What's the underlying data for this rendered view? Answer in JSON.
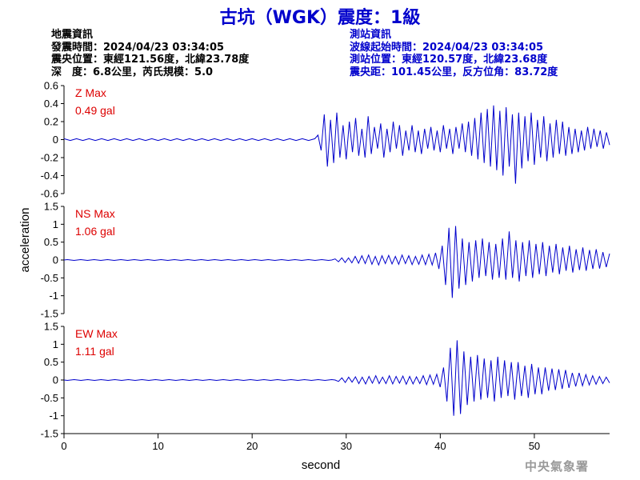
{
  "header": {
    "title": "古坑（WGK）震度：1級"
  },
  "quake_info": {
    "heading": "地震資訊",
    "lines": [
      {
        "label": "發震時間：",
        "value": "2024/04/23 03:34:05"
      },
      {
        "label": "震央位置：",
        "value": "東經121.56度，北緯23.78度"
      },
      {
        "label": "深　度：",
        "value": "6.8公里，芮氏規模：5.0"
      }
    ]
  },
  "station_info": {
    "heading": "測站資訊",
    "lines": [
      {
        "label": "波線起始時間：",
        "value": "2024/04/23 03:34:05"
      },
      {
        "label": "測站位置：",
        "value": "東經120.57度，北緯23.68度"
      },
      {
        "label": "震央距：",
        "value": "101.45公里，反方位角：83.72度"
      }
    ]
  },
  "footer": {
    "agency": "中央氣象署"
  },
  "colors": {
    "title": "#0000cc",
    "trace": "#0000cc",
    "max_label": "#dd0000",
    "axis": "#000000"
  },
  "chart_data": {
    "type": "line",
    "xlabel": "second",
    "ylabel": "acceleration",
    "xlim": [
      0,
      58
    ],
    "xticks": [
      0,
      10,
      20,
      30,
      40,
      50
    ],
    "panels": [
      {
        "name": "Z",
        "max_label": "Z Max",
        "max_value": "0.49 gal",
        "ylim": [
          -0.6,
          0.6
        ],
        "yticks": [
          "-0.6",
          "-0.4",
          "-0.2",
          "0",
          "0.2",
          "0.4",
          "0.6"
        ],
        "y": [
          0.01,
          0.0,
          -0.01,
          0.0,
          0.01,
          0.0,
          -0.01,
          0.0,
          0.01,
          0.0,
          -0.01,
          0.0,
          0.01,
          0.0,
          -0.01,
          0.0,
          0.01,
          0.0,
          -0.01,
          0.0,
          0.01,
          0.0,
          -0.01,
          0.0,
          0.01,
          0.0,
          -0.01,
          0.0,
          0.01,
          0.0,
          -0.01,
          0.0,
          0.01,
          0.0,
          -0.01,
          0.0,
          0.01,
          0.0,
          -0.01,
          0.0,
          0.01,
          0.0,
          -0.01,
          0.0,
          0.01,
          0.0,
          -0.01,
          0.0,
          0.01,
          0.0,
          -0.01,
          0.0,
          0.01,
          0.0,
          -0.01,
          0.0,
          0.01,
          0.0,
          -0.01,
          0.0,
          0.01,
          0.0,
          -0.01,
          0.0,
          0.01,
          0.0,
          -0.01,
          0.0,
          0.01,
          0.0,
          -0.01,
          0.0,
          0.01,
          0.0,
          -0.01,
          0.0,
          0.01,
          0.0,
          -0.01,
          0.0,
          0.01,
          0.05,
          -0.12,
          0.28,
          -0.3,
          0.22,
          -0.26,
          0.3,
          -0.2,
          0.16,
          -0.22,
          0.2,
          -0.14,
          0.24,
          -0.18,
          0.12,
          -0.2,
          0.26,
          -0.16,
          0.14,
          -0.1,
          0.18,
          -0.2,
          0.12,
          -0.14,
          0.2,
          -0.1,
          0.16,
          -0.18,
          0.1,
          -0.12,
          0.16,
          -0.14,
          0.1,
          -0.16,
          0.12,
          -0.1,
          0.14,
          -0.12,
          0.1,
          -0.14,
          0.16,
          -0.1,
          0.12,
          -0.16,
          0.14,
          -0.1,
          0.18,
          -0.14,
          0.2,
          -0.18,
          0.24,
          -0.22,
          0.3,
          -0.26,
          0.34,
          -0.3,
          0.38,
          -0.34,
          0.32,
          -0.4,
          0.36,
          -0.3,
          0.28,
          -0.49,
          0.3,
          -0.32,
          0.26,
          -0.24,
          0.3,
          -0.28,
          0.22,
          -0.2,
          0.26,
          -0.24,
          0.18,
          -0.2,
          0.22,
          -0.16,
          0.2,
          -0.18,
          0.14,
          -0.16,
          0.12,
          -0.14,
          0.1,
          -0.12,
          0.14,
          -0.1,
          0.12,
          -0.08,
          0.1,
          -0.1,
          0.08,
          -0.06
        ],
        "x_start": 0,
        "x_end": 58
      },
      {
        "name": "NS",
        "max_label": "NS Max",
        "max_value": "1.06 gal",
        "ylim": [
          -1.5,
          1.5
        ],
        "yticks": [
          "-1.5",
          "-1",
          "-0.5",
          "0",
          "0.5",
          "1",
          "1.5"
        ],
        "y": [
          0.0,
          0.01,
          0.0,
          -0.01,
          0.0,
          0.01,
          0.0,
          -0.01,
          0.0,
          0.01,
          0.0,
          -0.01,
          0.0,
          0.01,
          0.0,
          -0.01,
          0.0,
          0.01,
          0.0,
          -0.01,
          0.0,
          0.01,
          0.0,
          -0.01,
          0.0,
          0.01,
          0.0,
          -0.01,
          0.0,
          0.01,
          0.0,
          -0.01,
          0.0,
          0.01,
          0.0,
          -0.01,
          0.0,
          0.01,
          0.0,
          -0.01,
          0.0,
          0.01,
          0.0,
          -0.01,
          0.0,
          0.01,
          0.0,
          -0.01,
          0.0,
          0.01,
          0.0,
          -0.01,
          0.0,
          0.01,
          0.0,
          -0.01,
          0.0,
          0.01,
          0.0,
          -0.01,
          0.0,
          0.01,
          0.0,
          -0.01,
          0.0,
          0.01,
          0.0,
          -0.01,
          0.0,
          0.01,
          0.0,
          -0.01,
          0.0,
          0.01,
          0.0,
          -0.01,
          0.0,
          0.01,
          0.0,
          -0.01,
          0.0,
          0.03,
          -0.05,
          0.06,
          -0.07,
          0.06,
          -0.08,
          0.1,
          -0.09,
          0.12,
          -0.1,
          0.14,
          -0.12,
          0.1,
          -0.14,
          0.12,
          -0.1,
          0.13,
          -0.11,
          0.1,
          -0.12,
          0.14,
          -0.1,
          0.12,
          -0.13,
          0.1,
          -0.12,
          0.14,
          -0.13,
          0.16,
          -0.14,
          0.2,
          -0.25,
          0.4,
          -0.7,
          0.9,
          -1.06,
          0.95,
          -0.8,
          0.6,
          -0.7,
          0.5,
          -0.6,
          0.55,
          -0.5,
          0.6,
          -0.45,
          0.5,
          -0.55,
          0.45,
          -0.5,
          0.6,
          -0.55,
          0.8,
          -0.5,
          0.55,
          -0.6,
          0.5,
          -0.45,
          0.55,
          -0.5,
          0.45,
          -0.4,
          0.5,
          -0.45,
          0.4,
          -0.35,
          0.45,
          -0.4,
          0.35,
          -0.3,
          0.4,
          -0.35,
          0.3,
          -0.28,
          0.35,
          -0.3,
          0.28,
          -0.25,
          0.3,
          -0.24,
          0.22,
          -0.2,
          0.18
        ],
        "x_start": 0,
        "x_end": 58
      },
      {
        "name": "EW",
        "max_label": "EW Max",
        "max_value": "1.11 gal",
        "ylim": [
          -1.5,
          1.5
        ],
        "yticks": [
          "-1.5",
          "-1",
          "-0.5",
          "0",
          "0.5",
          "1",
          "1.5"
        ],
        "y": [
          0.0,
          -0.01,
          0.0,
          0.01,
          0.0,
          -0.01,
          0.0,
          0.01,
          0.0,
          -0.01,
          0.0,
          0.01,
          0.0,
          -0.01,
          0.0,
          0.01,
          0.0,
          -0.01,
          0.0,
          0.01,
          0.0,
          -0.01,
          0.0,
          0.01,
          0.0,
          -0.01,
          0.0,
          0.01,
          0.0,
          -0.01,
          0.0,
          0.01,
          0.0,
          -0.01,
          0.0,
          0.01,
          0.0,
          -0.01,
          0.0,
          0.01,
          0.0,
          -0.01,
          0.0,
          0.01,
          0.0,
          -0.01,
          0.0,
          0.01,
          0.0,
          -0.01,
          0.0,
          0.01,
          0.0,
          -0.01,
          0.0,
          0.01,
          0.0,
          -0.01,
          0.0,
          0.01,
          0.0,
          -0.01,
          0.0,
          0.01,
          0.0,
          -0.01,
          0.0,
          0.01,
          0.0,
          -0.01,
          0.0,
          0.01,
          0.0,
          -0.01,
          0.0,
          0.01,
          0.0,
          -0.01,
          0.0,
          0.01,
          0.0,
          -0.04,
          0.06,
          -0.07,
          0.08,
          -0.06,
          0.09,
          -0.1,
          0.08,
          -0.11,
          0.1,
          -0.09,
          0.12,
          -0.1,
          0.08,
          -0.1,
          0.12,
          -0.11,
          0.1,
          -0.09,
          0.11,
          -0.12,
          0.1,
          -0.11,
          0.09,
          -0.1,
          0.12,
          -0.13,
          0.14,
          -0.12,
          0.16,
          -0.2,
          0.35,
          -0.6,
          0.9,
          -1.0,
          1.11,
          -0.95,
          0.8,
          -0.7,
          0.65,
          -0.6,
          0.7,
          -0.55,
          0.6,
          -0.5,
          0.55,
          -0.6,
          0.65,
          -0.5,
          0.55,
          -0.45,
          0.5,
          -0.55,
          0.5,
          -0.45,
          0.4,
          -0.5,
          0.45,
          -0.4,
          0.35,
          -0.4,
          0.35,
          -0.3,
          0.32,
          -0.28,
          0.3,
          -0.25,
          0.28,
          -0.22,
          0.2,
          -0.18,
          0.2,
          -0.16,
          0.15,
          -0.14,
          0.12,
          -0.12,
          0.1,
          -0.1,
          0.08,
          -0.08
        ],
        "x_start": 0,
        "x_end": 58
      }
    ]
  }
}
